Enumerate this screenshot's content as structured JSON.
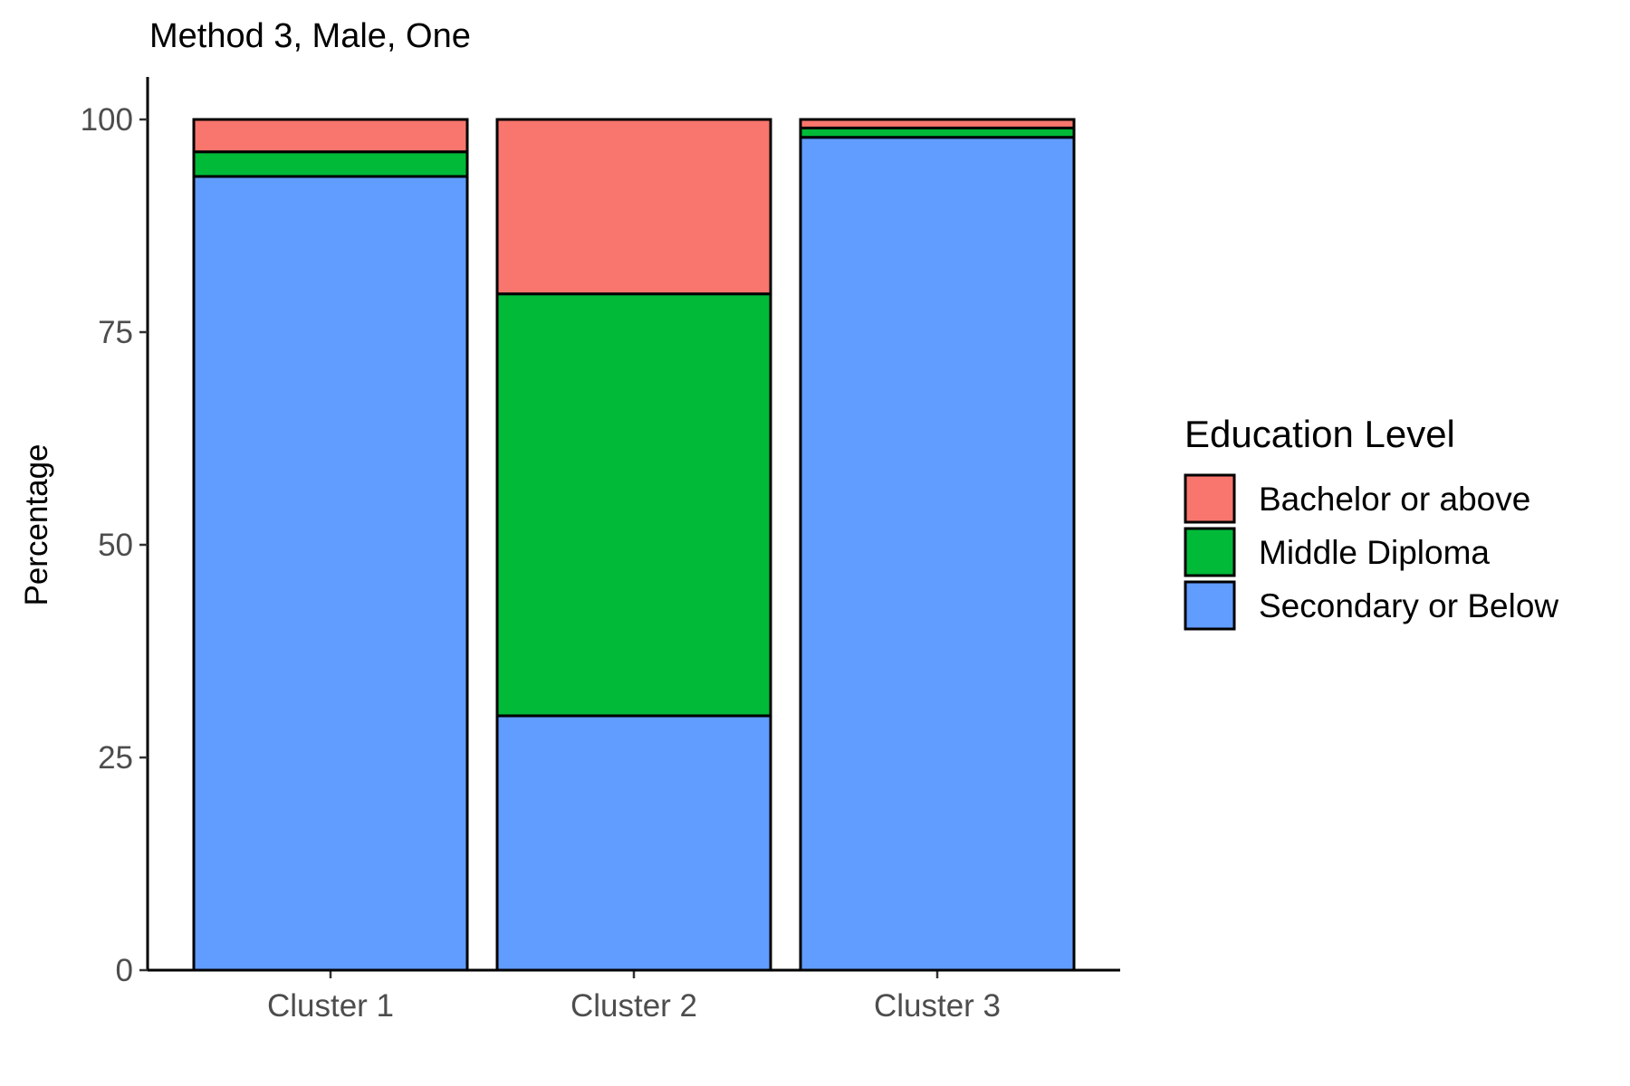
{
  "chart_data": {
    "type": "bar",
    "stacked": true,
    "title": "Method 3, Male, One",
    "xlabel": "",
    "ylabel": "Percentage",
    "categories": [
      "Cluster 1",
      "Cluster 2",
      "Cluster 3"
    ],
    "ylim": [
      0,
      100
    ],
    "yticks": [
      0,
      25,
      50,
      75,
      100
    ],
    "grid": false,
    "legend": {
      "title": "Education Level",
      "position": "right"
    },
    "series": [
      {
        "name": "Bachelor or above",
        "color": "#F8766D",
        "values": [
          3.8,
          20.5,
          1.0
        ]
      },
      {
        "name": "Middle Diploma",
        "color": "#00BA38",
        "values": [
          2.9,
          49.6,
          1.1
        ]
      },
      {
        "name": "Secondary or Below",
        "color": "#619CFF",
        "values": [
          93.3,
          29.9,
          97.9
        ]
      }
    ]
  }
}
